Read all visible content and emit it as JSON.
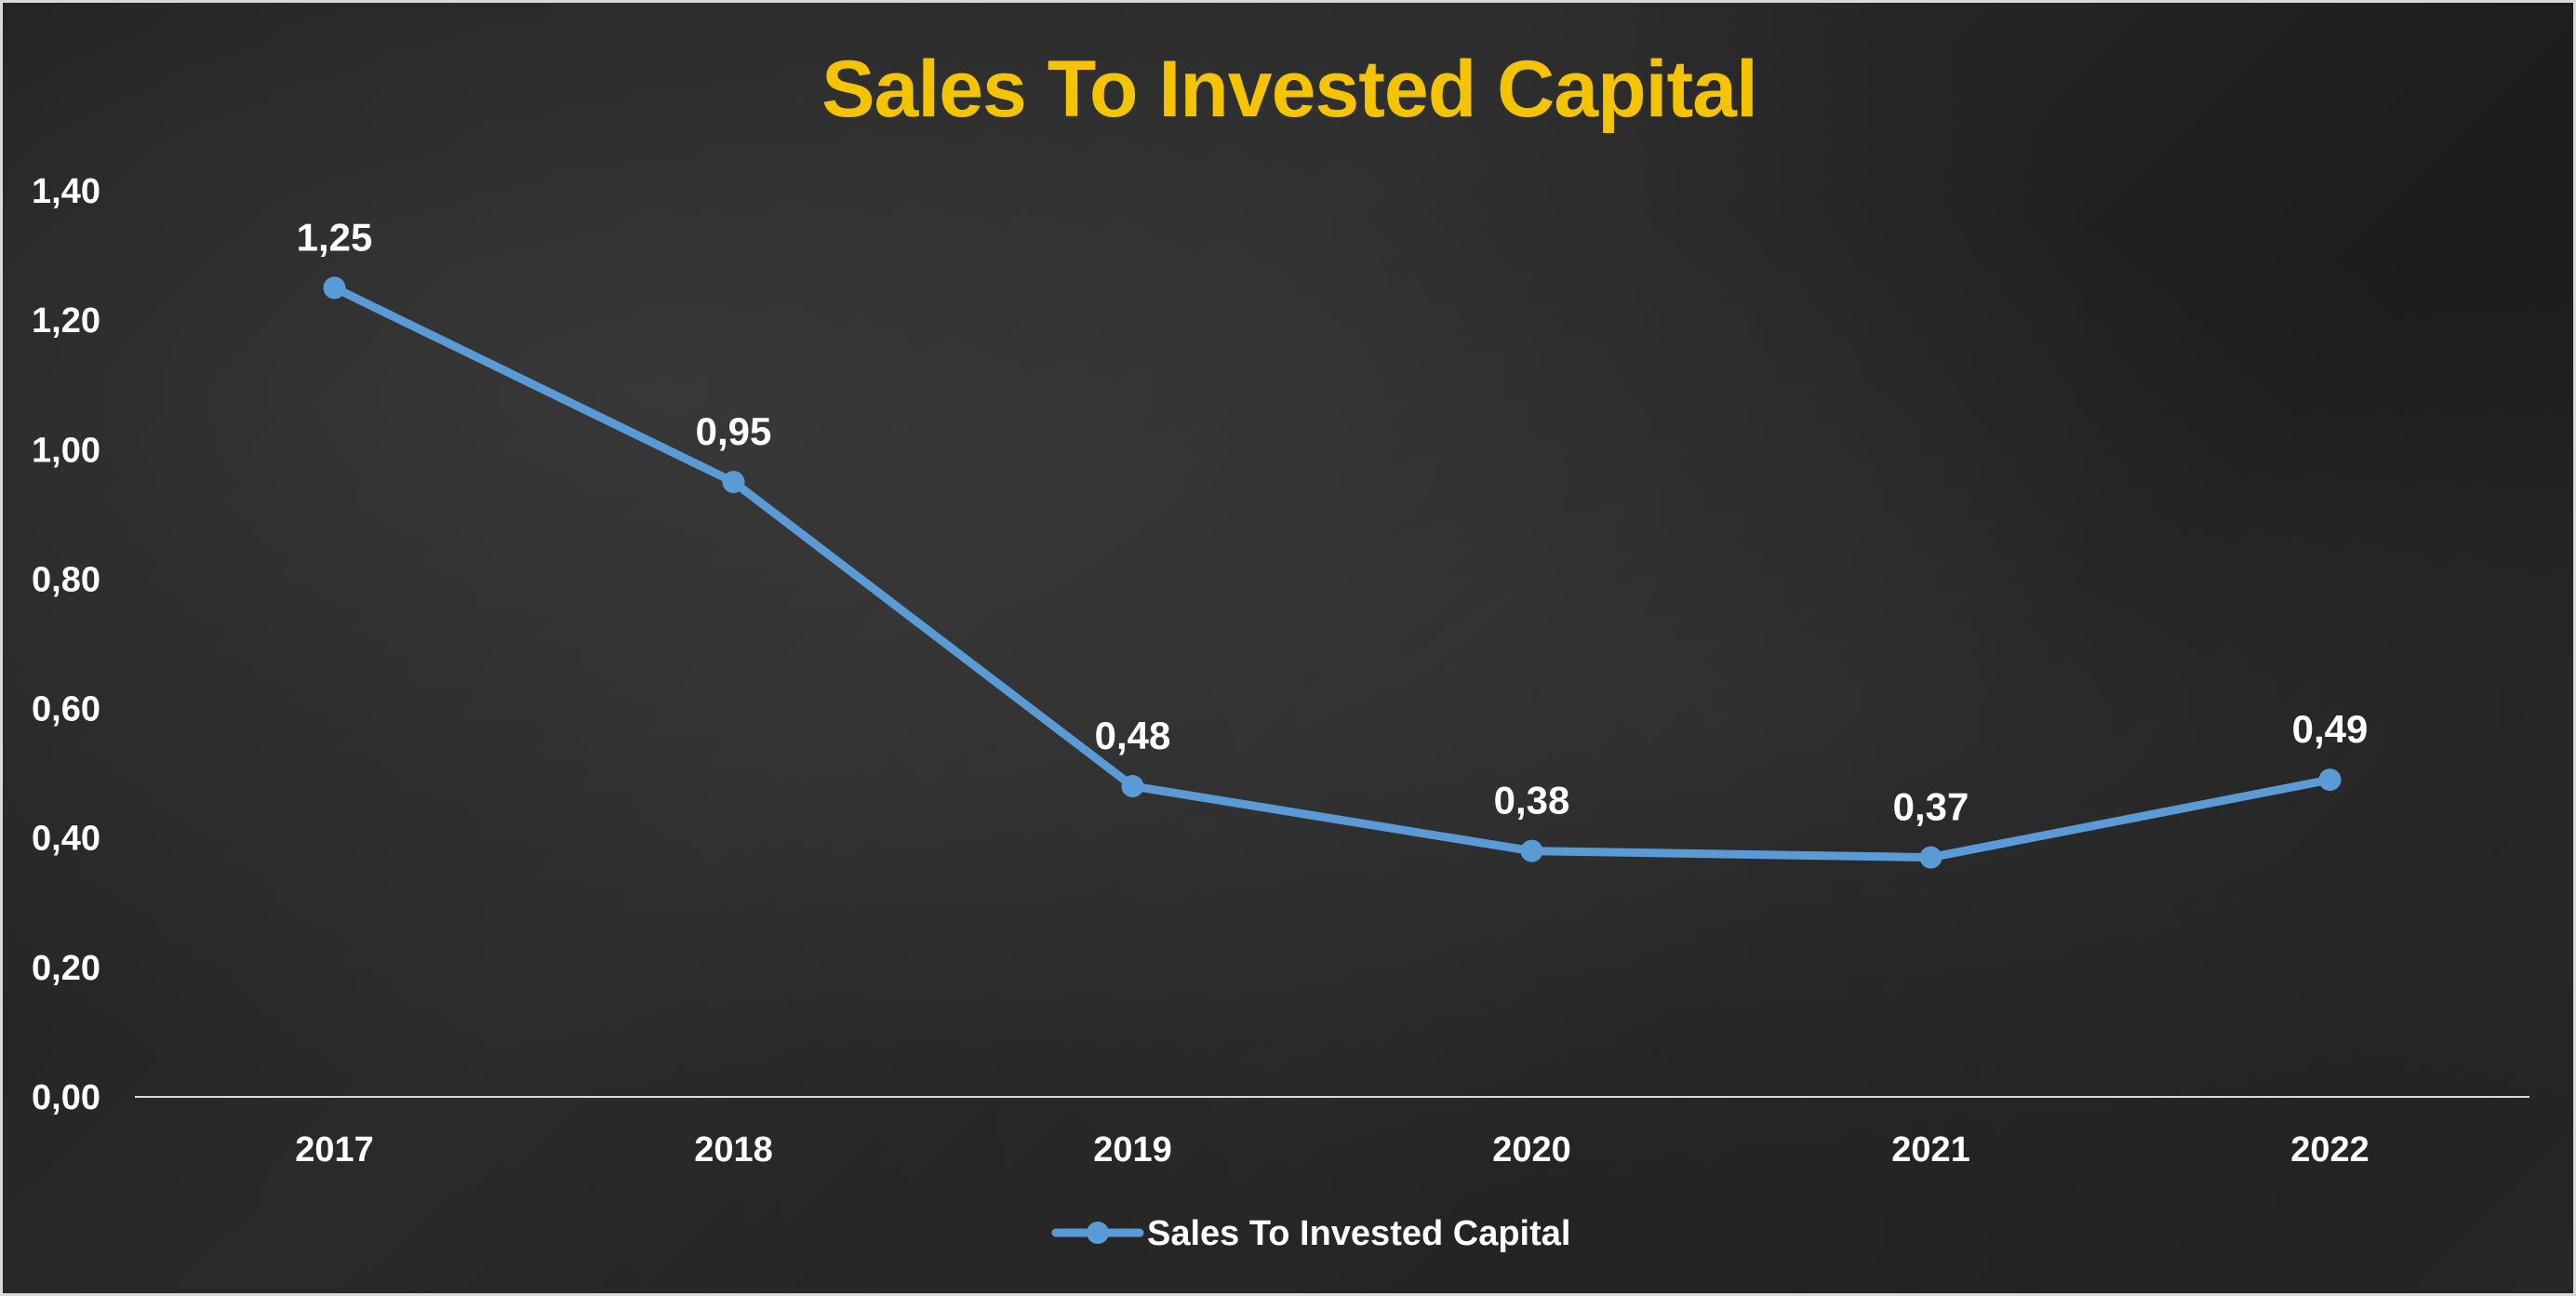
{
  "chart_data": {
    "type": "line",
    "title": "Sales To Invested Capital",
    "categories": [
      "2017",
      "2018",
      "2019",
      "2020",
      "2021",
      "2022"
    ],
    "series": [
      {
        "name": "Sales To Invested Capital",
        "values": [
          1.25,
          0.95,
          0.48,
          0.38,
          0.37,
          0.49
        ],
        "value_labels": [
          "1,25",
          "0,95",
          "0,48",
          "0,38",
          "0,37",
          "0,49"
        ],
        "color": "#5b9bd5"
      }
    ],
    "ylim": [
      0,
      1.4
    ],
    "y_ticks": [
      0,
      0.2,
      0.4,
      0.6,
      0.8,
      1.0,
      1.2,
      1.4
    ],
    "y_tick_labels": [
      "0,00",
      "0,20",
      "0,40",
      "0,60",
      "0,80",
      "1,00",
      "1,20",
      "1,40"
    ],
    "xlabel": "",
    "ylabel": "",
    "grid": false,
    "legend_position": "bottom",
    "colors": {
      "title": "#f5c400",
      "text": "#ffffff",
      "axis_line": "#d9d9d9"
    }
  }
}
